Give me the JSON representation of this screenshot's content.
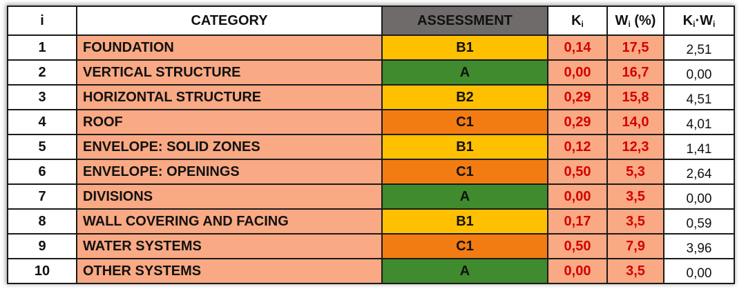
{
  "colors": {
    "category_fill": "#f9a983",
    "value_text": "#d40000",
    "assessment_header_fill": "#6f6b6b",
    "grade_A": "#3f8b2d",
    "grade_B": "#ffc000",
    "grade_C": "#f27c12"
  },
  "header": {
    "i": "i",
    "category": "CATEGORY",
    "assessment": "ASSESSMENT",
    "k": "K",
    "k_sub": "i",
    "w": "W",
    "w_sub": "i",
    "w_unit": " (%)",
    "kw_k": "K",
    "kw_k_sub": "i",
    "kw_dot": "·",
    "kw_w": "W",
    "kw_w_sub": "i"
  },
  "rows": [
    {
      "i": "1",
      "category": "FOUNDATION",
      "assessment": "B1",
      "grade": "B",
      "k": "0,14",
      "w": "17,5",
      "kw": "2,51"
    },
    {
      "i": "2",
      "category": "VERTICAL STRUCTURE",
      "assessment": "A",
      "grade": "A",
      "k": "0,00",
      "w": "16,7",
      "kw": "0,00"
    },
    {
      "i": "3",
      "category": "HORIZONTAL STRUCTURE",
      "assessment": "B2",
      "grade": "B",
      "k": "0,29",
      "w": "15,8",
      "kw": "4,51"
    },
    {
      "i": "4",
      "category": "ROOF",
      "assessment": "C1",
      "grade": "C",
      "k": "0,29",
      "w": "14,0",
      "kw": "4,01"
    },
    {
      "i": "5",
      "category": "ENVELOPE: SOLID ZONES",
      "assessment": "B1",
      "grade": "B",
      "k": "0,12",
      "w": "12,3",
      "kw": "1,41"
    },
    {
      "i": "6",
      "category": "ENVELOPE: OPENINGS",
      "assessment": "C1",
      "grade": "C",
      "k": "0,50",
      "w": "5,3",
      "kw": "2,64"
    },
    {
      "i": "7",
      "category": "DIVISIONS",
      "assessment": "A",
      "grade": "A",
      "k": "0,00",
      "w": "3,5",
      "kw": "0,00"
    },
    {
      "i": "8",
      "category": "WALL COVERING AND FACING",
      "assessment": "B1",
      "grade": "B",
      "k": "0,17",
      "w": "3,5",
      "kw": "0,59"
    },
    {
      "i": "9",
      "category": "WATER SYSTEMS",
      "assessment": "C1",
      "grade": "C",
      "k": "0,50",
      "w": "7,9",
      "kw": "3,96"
    },
    {
      "i": "10",
      "category": "OTHER SYSTEMS",
      "assessment": "A",
      "grade": "A",
      "k": "0,00",
      "w": "3,5",
      "kw": "0,00"
    }
  ]
}
